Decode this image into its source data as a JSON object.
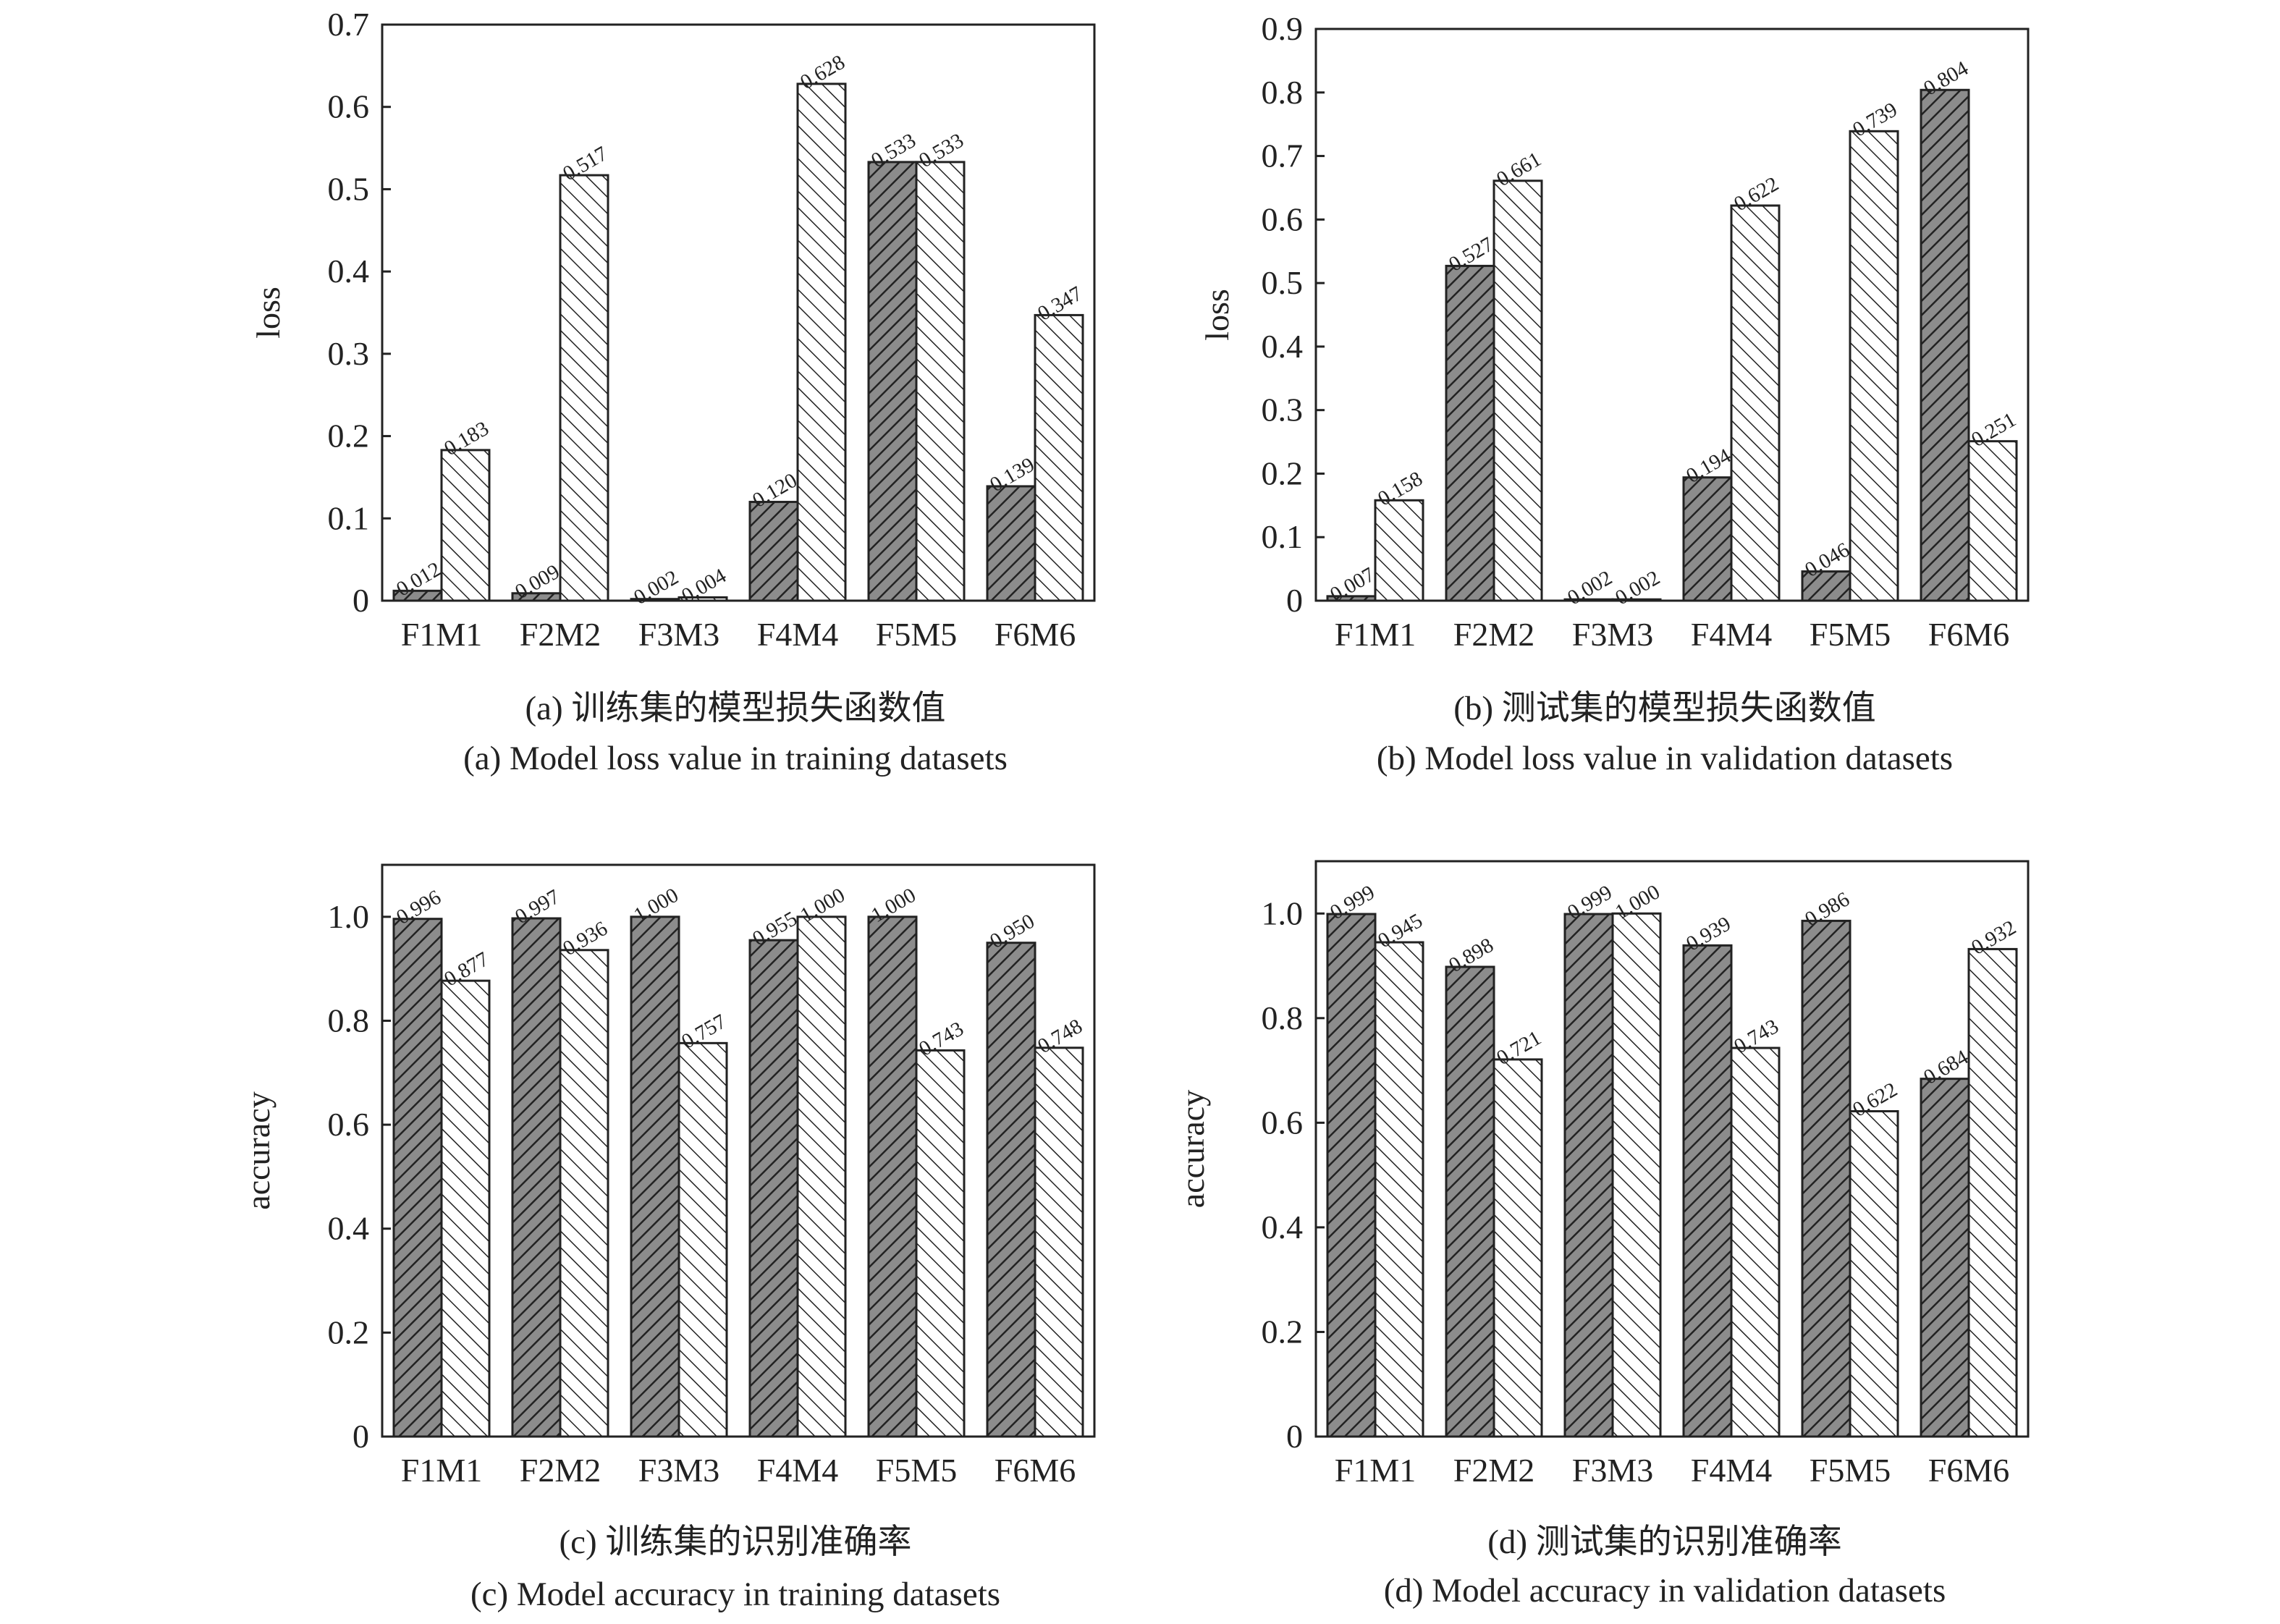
{
  "chart_data": [
    {
      "type": "bar",
      "captions": [
        "(a) 训练集的模型损失函数值",
        "(a) Model loss value in training datasets"
      ],
      "xlabel": "",
      "ylabel": "loss",
      "ylim": [
        0,
        0.7
      ],
      "yticks": [
        "0",
        "0.1",
        "0.2",
        "0.3",
        "0.4",
        "0.5",
        "0.6",
        "0.7"
      ],
      "categories": [
        "F1M1",
        "F2M2",
        "F3M3",
        "F4M4",
        "F5M5",
        "F6M6"
      ],
      "series": [
        {
          "values": [
            0.012,
            0.009,
            0.002,
            0.12,
            0.533,
            0.139
          ],
          "labels": [
            "0.012",
            "0.009",
            "0.002",
            "0.120",
            "0.533",
            "0.139"
          ]
        },
        {
          "values": [
            0.183,
            0.517,
            0.004,
            0.628,
            0.533,
            0.347
          ],
          "labels": [
            "0.183",
            "0.517",
            "0.004",
            "0.628",
            "0.533",
            "0.347"
          ]
        }
      ]
    },
    {
      "type": "bar",
      "captions": [
        "(b) 测试集的模型损失函数值",
        "(b) Model loss value in validation datasets"
      ],
      "xlabel": "",
      "ylabel": "loss",
      "ylim": [
        0,
        0.9
      ],
      "yticks": [
        "0",
        "0.1",
        "0.2",
        "0.3",
        "0.4",
        "0.5",
        "0.6",
        "0.7",
        "0.8",
        "0.9"
      ],
      "categories": [
        "F1M1",
        "F2M2",
        "F3M3",
        "F4M4",
        "F5M5",
        "F6M6"
      ],
      "series": [
        {
          "values": [
            0.007,
            0.527,
            0.002,
            0.194,
            0.046,
            0.804
          ],
          "labels": [
            "0.007",
            "0.527",
            "0.002",
            "0.194",
            "0.046",
            "0.804"
          ]
        },
        {
          "values": [
            0.158,
            0.661,
            0.002,
            0.622,
            0.739,
            0.251
          ],
          "labels": [
            "0.158",
            "0.661",
            "0.002",
            "0.622",
            "0.739",
            "0.251"
          ]
        }
      ]
    },
    {
      "type": "bar",
      "captions": [
        "(c) 训练集的识别准确率",
        "(c) Model accuracy in training datasets"
      ],
      "xlabel": "",
      "ylabel": "accuracy",
      "ylim": [
        0,
        1.1
      ],
      "yticks": [
        "0",
        "0.2",
        "0.4",
        "0.6",
        "0.8",
        "1.0"
      ],
      "categories": [
        "F1M1",
        "F2M2",
        "F3M3",
        "F4M4",
        "F5M5",
        "F6M6"
      ],
      "series": [
        {
          "values": [
            0.996,
            0.997,
            1.0,
            0.955,
            1.0,
            0.95
          ],
          "labels": [
            "0.996",
            "0.997",
            "1.000",
            "0.955",
            "1.000",
            "0.950"
          ]
        },
        {
          "values": [
            0.877,
            0.936,
            0.757,
            1.0,
            0.743,
            0.748
          ],
          "labels": [
            "0.877",
            "0.936",
            "0.757",
            "1.000",
            "0.743",
            "0.748"
          ]
        }
      ]
    },
    {
      "type": "bar",
      "captions": [
        "(d) 测试集的识别准确率",
        "(d) Model accuracy in validation datasets"
      ],
      "xlabel": "",
      "ylabel": "accuracy",
      "ylim": [
        0,
        1.1
      ],
      "yticks": [
        "0",
        "0.2",
        "0.4",
        "0.6",
        "0.8",
        "1.0"
      ],
      "categories": [
        "F1M1",
        "F2M2",
        "F3M3",
        "F4M4",
        "F5M5",
        "F6M6"
      ],
      "series": [
        {
          "values": [
            0.999,
            0.898,
            0.999,
            0.939,
            0.986,
            0.684
          ],
          "labels": [
            "0.999",
            "0.898",
            "0.999",
            "0.939",
            "0.986",
            "0.684"
          ]
        },
        {
          "values": [
            0.945,
            0.721,
            1.0,
            0.743,
            0.622,
            0.932
          ],
          "labels": [
            "0.945",
            "0.721",
            "1.000",
            "0.743",
            "0.622",
            "0.932"
          ]
        }
      ]
    }
  ]
}
